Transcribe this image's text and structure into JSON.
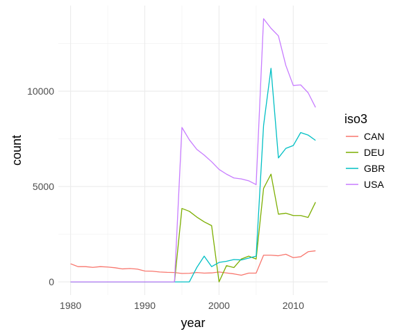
{
  "chart_data": {
    "type": "line",
    "title": "",
    "xlabel": "year",
    "ylabel": "count",
    "xlim": [
      1978.35,
      2014.65
    ],
    "ylim": [
      -690,
      14490
    ],
    "xticks": [
      1980,
      1990,
      2000,
      2010
    ],
    "yticks": [
      0,
      5000,
      10000
    ],
    "grid": true,
    "legend": {
      "title": "iso3",
      "position": "right"
    },
    "series": [
      {
        "name": "CAN",
        "color": "#F8766D",
        "points": [
          [
            1980,
            950
          ],
          [
            1981,
            800
          ],
          [
            1982,
            800
          ],
          [
            1983,
            760
          ],
          [
            1984,
            800
          ],
          [
            1985,
            780
          ],
          [
            1986,
            740
          ],
          [
            1987,
            680
          ],
          [
            1988,
            700
          ],
          [
            1989,
            670
          ],
          [
            1990,
            570
          ],
          [
            1991,
            560
          ],
          [
            1992,
            520
          ],
          [
            1993,
            500
          ],
          [
            1994,
            490
          ],
          [
            1995,
            440
          ],
          [
            1996,
            450
          ],
          [
            1997,
            490
          ],
          [
            1998,
            460
          ],
          [
            1999,
            470
          ],
          [
            2000,
            520
          ],
          [
            2001,
            470
          ],
          [
            2002,
            420
          ],
          [
            2003,
            350
          ],
          [
            2004,
            460
          ],
          [
            2005,
            460
          ],
          [
            2006,
            1400
          ],
          [
            2007,
            1400
          ],
          [
            2008,
            1370
          ],
          [
            2009,
            1450
          ],
          [
            2010,
            1270
          ],
          [
            2011,
            1320
          ],
          [
            2012,
            1580
          ],
          [
            2013,
            1630
          ]
        ]
      },
      {
        "name": "DEU",
        "color": "#7CAE00",
        "points": [
          [
            1980,
            0
          ],
          [
            1981,
            0
          ],
          [
            1982,
            0
          ],
          [
            1983,
            0
          ],
          [
            1984,
            0
          ],
          [
            1985,
            0
          ],
          [
            1986,
            0
          ],
          [
            1987,
            0
          ],
          [
            1988,
            0
          ],
          [
            1989,
            0
          ],
          [
            1990,
            0
          ],
          [
            1991,
            0
          ],
          [
            1992,
            0
          ],
          [
            1993,
            0
          ],
          [
            1994,
            0
          ],
          [
            1995,
            3850
          ],
          [
            1996,
            3700
          ],
          [
            1997,
            3400
          ],
          [
            1998,
            3150
          ],
          [
            1999,
            2950
          ],
          [
            2000,
            0
          ],
          [
            2001,
            850
          ],
          [
            2002,
            750
          ],
          [
            2003,
            1200
          ],
          [
            2004,
            1350
          ],
          [
            2005,
            1200
          ],
          [
            2006,
            4900
          ],
          [
            2007,
            5650
          ],
          [
            2008,
            3550
          ],
          [
            2009,
            3600
          ],
          [
            2010,
            3480
          ],
          [
            2011,
            3480
          ],
          [
            2012,
            3380
          ],
          [
            2013,
            4180
          ]
        ]
      },
      {
        "name": "GBR",
        "color": "#00BFC4",
        "points": [
          [
            1980,
            0
          ],
          [
            1981,
            0
          ],
          [
            1982,
            0
          ],
          [
            1983,
            0
          ],
          [
            1984,
            0
          ],
          [
            1985,
            0
          ],
          [
            1986,
            0
          ],
          [
            1987,
            0
          ],
          [
            1988,
            0
          ],
          [
            1989,
            0
          ],
          [
            1990,
            0
          ],
          [
            1991,
            0
          ],
          [
            1992,
            0
          ],
          [
            1993,
            0
          ],
          [
            1994,
            0
          ],
          [
            1995,
            0
          ],
          [
            1996,
            0
          ],
          [
            1997,
            750
          ],
          [
            1998,
            1350
          ],
          [
            1999,
            800
          ],
          [
            2000,
            1020
          ],
          [
            2001,
            1080
          ],
          [
            2002,
            1170
          ],
          [
            2003,
            1150
          ],
          [
            2004,
            1250
          ],
          [
            2005,
            1350
          ],
          [
            2006,
            8200
          ],
          [
            2007,
            11200
          ],
          [
            2008,
            6500
          ],
          [
            2009,
            7000
          ],
          [
            2010,
            7150
          ],
          [
            2011,
            7830
          ],
          [
            2012,
            7700
          ],
          [
            2013,
            7420
          ]
        ]
      },
      {
        "name": "USA",
        "color": "#C77CFF",
        "points": [
          [
            1980,
            0
          ],
          [
            1981,
            0
          ],
          [
            1982,
            0
          ],
          [
            1983,
            0
          ],
          [
            1984,
            0
          ],
          [
            1985,
            0
          ],
          [
            1986,
            0
          ],
          [
            1987,
            0
          ],
          [
            1988,
            0
          ],
          [
            1989,
            0
          ],
          [
            1990,
            0
          ],
          [
            1991,
            0
          ],
          [
            1992,
            0
          ],
          [
            1993,
            0
          ],
          [
            1994,
            0
          ],
          [
            1995,
            8100
          ],
          [
            1996,
            7450
          ],
          [
            1997,
            6950
          ],
          [
            1998,
            6650
          ],
          [
            1999,
            6300
          ],
          [
            2000,
            5900
          ],
          [
            2001,
            5650
          ],
          [
            2002,
            5450
          ],
          [
            2003,
            5400
          ],
          [
            2004,
            5300
          ],
          [
            2005,
            5100
          ],
          [
            2006,
            13800
          ],
          [
            2007,
            13300
          ],
          [
            2008,
            12900
          ],
          [
            2009,
            11350
          ],
          [
            2010,
            10300
          ],
          [
            2011,
            10330
          ],
          [
            2012,
            9920
          ],
          [
            2013,
            9150
          ]
        ]
      }
    ]
  }
}
